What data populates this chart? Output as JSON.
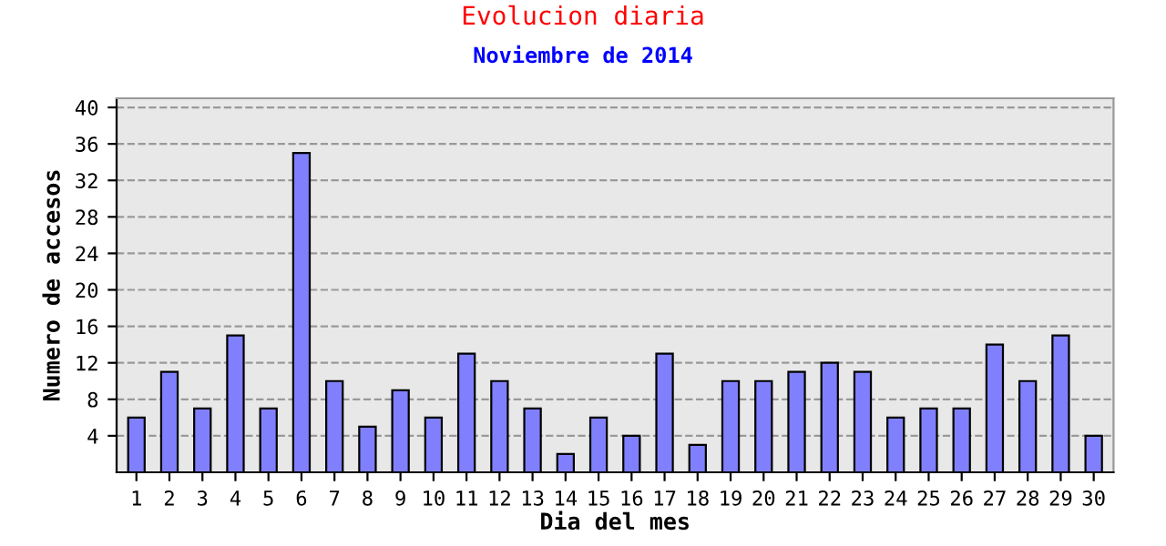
{
  "chart_data": {
    "type": "bar",
    "title": "Evolucion diaria",
    "subtitle": "Noviembre de 2014",
    "xlabel": "Dia del mes",
    "ylabel": "Numero de accesos",
    "categories": [
      "1",
      "2",
      "3",
      "4",
      "5",
      "6",
      "7",
      "8",
      "9",
      "10",
      "11",
      "12",
      "13",
      "14",
      "15",
      "16",
      "17",
      "18",
      "19",
      "20",
      "21",
      "22",
      "23",
      "24",
      "25",
      "26",
      "27",
      "28",
      "29",
      "30"
    ],
    "values": [
      6,
      11,
      7,
      15,
      7,
      35,
      10,
      5,
      9,
      6,
      13,
      10,
      7,
      2,
      6,
      4,
      13,
      3,
      10,
      10,
      11,
      12,
      11,
      6,
      7,
      7,
      14,
      10,
      15,
      4
    ],
    "color": "#8080ff",
    "ylim": [
      0,
      41
    ],
    "yticks": [
      4,
      8,
      12,
      16,
      20,
      24,
      28,
      32,
      36,
      40
    ],
    "grid": "y",
    "legend": false
  }
}
